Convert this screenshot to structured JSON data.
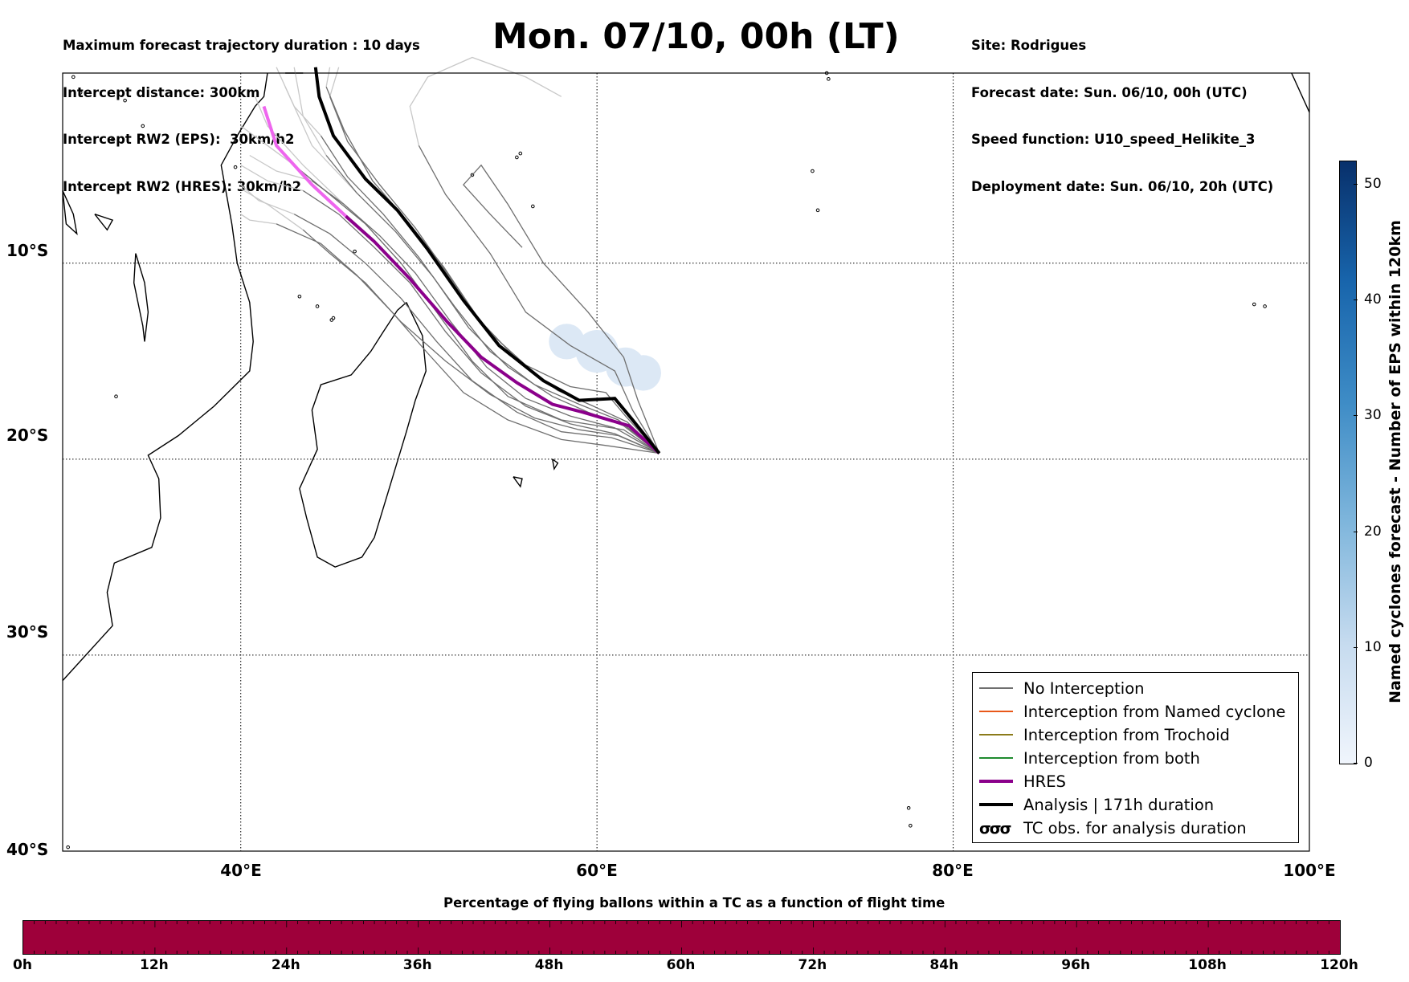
{
  "header": {
    "left_lines": [
      "Maximum forecast trajectory duration : 10 days",
      "Intercept distance: 300km",
      "Intercept RW2 (EPS):  30km/h2",
      "Intercept RW2 (HRES): 30km/h2"
    ],
    "title": "Mon. 07/10, 00h (LT)",
    "right_lines": [
      "Site: Rodrigues",
      "Forecast date: Sun. 06/10, 00h (UTC)",
      "Speed function: U10_speed_Helikite_3",
      "Deployment date: Sun. 06/10, 20h (UTC)"
    ]
  },
  "map": {
    "lat_labels": [
      "10°S",
      "20°S",
      "30°S",
      "40°S"
    ],
    "lon_labels": [
      "40°E",
      "60°E",
      "80°E",
      "100°E"
    ],
    "extent": {
      "lon": [
        30,
        100
      ],
      "lat_top": -0.3,
      "lat_bottom": -40
    },
    "colors": {
      "no_interception": "#6f6f6f",
      "faded_trajectory": "#c8c8c8",
      "hres": "#8b008b",
      "hres_faded": "#ee66ee",
      "analysis": "#000000",
      "cyclone_area": "#dce8f5"
    },
    "launch_site": {
      "lon": 63.5,
      "lat": -19.7
    },
    "hres_track": [
      [
        63.5,
        -19.7
      ],
      [
        61.8,
        -18.3
      ],
      [
        59.2,
        -17.6
      ],
      [
        57.5,
        -17.2
      ],
      [
        55.5,
        -16.1
      ],
      [
        53.5,
        -14.8
      ],
      [
        51.6,
        -13.0
      ],
      [
        49.5,
        -10.8
      ],
      [
        47.5,
        -8.9
      ],
      [
        45.9,
        -7.6
      ]
    ],
    "hres_track_faded": [
      [
        45.9,
        -7.6
      ],
      [
        44.0,
        -6.0
      ],
      [
        42.0,
        -4.0
      ],
      [
        41.3,
        -2.0
      ]
    ],
    "analysis_track": [
      [
        63.5,
        -19.7
      ],
      [
        62.0,
        -18.0
      ],
      [
        61.0,
        -16.9
      ],
      [
        59.0,
        -17.0
      ],
      [
        57.0,
        -16.0
      ],
      [
        54.5,
        -14.2
      ],
      [
        52.5,
        -11.9
      ],
      [
        50.5,
        -9.3
      ],
      [
        48.8,
        -7.3
      ],
      [
        47.0,
        -5.7
      ],
      [
        45.2,
        -3.5
      ],
      [
        44.4,
        -1.5
      ],
      [
        44.2,
        0.0
      ]
    ],
    "ensemble_tracks": [
      [
        [
          63.5,
          -19.7
        ],
        [
          61.5,
          -18.5
        ],
        [
          58.0,
          -18.0
        ],
        [
          55.0,
          -16.8
        ],
        [
          53.0,
          -15.0
        ],
        [
          51.0,
          -12.5
        ],
        [
          49.0,
          -10.0
        ],
        [
          47.0,
          -8.0
        ],
        [
          45.0,
          -6.5
        ],
        [
          43.0,
          -5.0
        ]
      ],
      [
        [
          63.5,
          -19.7
        ],
        [
          61.0,
          -18.7
        ],
        [
          58.5,
          -18.2
        ],
        [
          56.0,
          -17.3
        ],
        [
          53.5,
          -15.6
        ],
        [
          51.5,
          -13.5
        ],
        [
          49.5,
          -11.0
        ],
        [
          47.5,
          -9.2
        ],
        [
          45.5,
          -7.5
        ],
        [
          43.5,
          -6.3
        ]
      ],
      [
        [
          63.5,
          -19.7
        ],
        [
          61.2,
          -18.0
        ],
        [
          59.0,
          -17.2
        ],
        [
          56.5,
          -16.2
        ],
        [
          54.0,
          -14.5
        ],
        [
          52.0,
          -12.2
        ],
        [
          50.0,
          -9.7
        ],
        [
          48.0,
          -7.5
        ],
        [
          46.0,
          -5.6
        ],
        [
          44.5,
          -3.5
        ]
      ],
      [
        [
          63.5,
          -19.7
        ],
        [
          60.8,
          -18.9
        ],
        [
          58.0,
          -18.6
        ],
        [
          55.5,
          -17.6
        ],
        [
          53.0,
          -16.0
        ],
        [
          51.0,
          -14.0
        ],
        [
          49.0,
          -11.8
        ],
        [
          47.0,
          -10.0
        ],
        [
          45.0,
          -8.5
        ],
        [
          43.0,
          -7.5
        ]
      ],
      [
        [
          63.5,
          -19.7
        ],
        [
          61.5,
          -18.3
        ],
        [
          59.5,
          -17.6
        ],
        [
          57.5,
          -16.8
        ],
        [
          55.0,
          -15.3
        ],
        [
          52.8,
          -13.3
        ],
        [
          50.8,
          -10.7
        ],
        [
          48.7,
          -8.4
        ],
        [
          46.5,
          -6.4
        ],
        [
          44.8,
          -4.5
        ]
      ],
      [
        [
          63.5,
          -19.7
        ],
        [
          60.5,
          -19.3
        ],
        [
          58.0,
          -19.0
        ],
        [
          55.0,
          -18.0
        ],
        [
          52.5,
          -16.6
        ],
        [
          50.5,
          -14.6
        ],
        [
          48.5,
          -12.5
        ],
        [
          46.5,
          -10.6
        ],
        [
          44.5,
          -9.0
        ],
        [
          42.0,
          -8.0
        ]
      ],
      [
        [
          63.5,
          -19.7
        ],
        [
          61.6,
          -17.8
        ],
        [
          60.5,
          -16.6
        ],
        [
          58.5,
          -16.3
        ],
        [
          56.0,
          -15.2
        ],
        [
          53.8,
          -13.4
        ],
        [
          51.8,
          -10.8
        ],
        [
          49.8,
          -8.2
        ],
        [
          47.8,
          -6.0
        ],
        [
          46.0,
          -3.8
        ],
        [
          45.0,
          -1.5
        ]
      ],
      [
        [
          63.5,
          -19.7
        ],
        [
          61.0,
          -18.4
        ],
        [
          58.5,
          -17.8
        ],
        [
          56.0,
          -16.9
        ],
        [
          53.8,
          -15.3
        ],
        [
          51.8,
          -13.0
        ],
        [
          49.8,
          -10.5
        ],
        [
          47.8,
          -8.6
        ],
        [
          45.8,
          -7.0
        ],
        [
          44.0,
          -5.8
        ]
      ],
      [
        [
          63.5,
          -19.7
        ],
        [
          62.0,
          -17.5
        ],
        [
          61.0,
          -15.5
        ],
        [
          58.5,
          -14.2
        ],
        [
          56.0,
          -12.5
        ],
        [
          54.0,
          -9.5
        ],
        [
          51.5,
          -6.5
        ],
        [
          50.0,
          -4.0
        ]
      ],
      [
        [
          63.5,
          -19.7
        ],
        [
          62.3,
          -17.0
        ],
        [
          61.5,
          -14.8
        ],
        [
          59.5,
          -12.5
        ],
        [
          57.0,
          -10.0
        ],
        [
          55.0,
          -7.0
        ],
        [
          53.5,
          -5.0
        ],
        [
          52.5,
          -6.0
        ],
        [
          54.0,
          -7.5
        ],
        [
          55.8,
          -9.2
        ]
      ],
      [
        [
          63.5,
          -19.7
        ],
        [
          61.2,
          -18.8
        ],
        [
          59.0,
          -18.5
        ],
        [
          56.5,
          -17.9
        ],
        [
          54.0,
          -16.7
        ],
        [
          51.5,
          -15.0
        ],
        [
          49.0,
          -13.0
        ],
        [
          47.0,
          -11.0
        ],
        [
          45.0,
          -9.5
        ],
        [
          43.5,
          -8.3
        ]
      ],
      [
        [
          63.5,
          -19.7
        ],
        [
          61.7,
          -18.1
        ],
        [
          59.8,
          -17.3
        ],
        [
          57.8,
          -16.5
        ],
        [
          55.6,
          -15.0
        ],
        [
          53.4,
          -12.9
        ],
        [
          51.4,
          -10.2
        ],
        [
          49.4,
          -7.9
        ],
        [
          47.4,
          -5.8
        ],
        [
          45.8,
          -3.2
        ],
        [
          44.8,
          -1.0
        ]
      ]
    ],
    "faded_tracks": [
      [
        [
          43.0,
          -5.0
        ],
        [
          41.5,
          -4.0
        ],
        [
          40.0,
          -3.0
        ]
      ],
      [
        [
          43.5,
          -6.3
        ],
        [
          41.5,
          -5.8
        ],
        [
          40.0,
          -5.0
        ]
      ],
      [
        [
          44.5,
          -3.5
        ],
        [
          43.0,
          -2.0
        ],
        [
          42.0,
          0.0
        ]
      ],
      [
        [
          43.0,
          -7.5
        ],
        [
          41.0,
          -6.8
        ],
        [
          40.0,
          -6.0
        ]
      ],
      [
        [
          44.8,
          -4.5
        ],
        [
          43.5,
          -2.5
        ],
        [
          43.0,
          0.0
        ]
      ],
      [
        [
          42.0,
          -8.0
        ],
        [
          40.5,
          -7.8
        ],
        [
          40.0,
          -7.5
        ]
      ],
      [
        [
          45.0,
          -1.5
        ],
        [
          45.5,
          0.0
        ]
      ],
      [
        [
          44.0,
          -5.8
        ],
        [
          42.0,
          -5.3
        ],
        [
          40.5,
          -4.5
        ]
      ],
      [
        [
          50.0,
          -4.0
        ],
        [
          49.5,
          -2.0
        ],
        [
          50.5,
          -0.5
        ],
        [
          53.0,
          0.5
        ],
        [
          56.0,
          -0.5
        ],
        [
          58.0,
          -1.5
        ]
      ],
      [
        [
          43.5,
          -8.3
        ],
        [
          41.5,
          -7.0
        ],
        [
          40.0,
          -6.2
        ]
      ],
      [
        [
          44.8,
          -1.0
        ],
        [
          45.0,
          0.0
        ]
      ],
      [
        [
          45.8,
          -7.0
        ],
        [
          43.5,
          -5.0
        ],
        [
          41.5,
          -3.0
        ],
        [
          40.8,
          -1.5
        ]
      ],
      [
        [
          46.5,
          -6.4
        ],
        [
          44.0,
          -4.0
        ],
        [
          42.5,
          -1.0
        ]
      ]
    ],
    "cyclone_blobs": [
      {
        "lon": 58.3,
        "lat": -14.0,
        "r": 1.0
      },
      {
        "lon": 60.0,
        "lat": -14.5,
        "r": 1.2
      },
      {
        "lon": 61.6,
        "lat": -15.3,
        "r": 1.1
      },
      {
        "lon": 62.6,
        "lat": -15.6,
        "r": 1.0
      }
    ],
    "coastlines": [
      [
        [
          30.0,
          -31.3
        ],
        [
          31.5,
          -29.8
        ],
        [
          32.8,
          -28.5
        ],
        [
          32.5,
          -26.8
        ],
        [
          32.9,
          -25.3
        ],
        [
          35.0,
          -24.5
        ],
        [
          35.5,
          -23.0
        ],
        [
          35.4,
          -21.0
        ],
        [
          34.8,
          -19.8
        ],
        [
          36.5,
          -18.8
        ],
        [
          38.5,
          -17.3
        ],
        [
          40.5,
          -15.5
        ],
        [
          40.7,
          -14.0
        ],
        [
          40.5,
          -12.0
        ],
        [
          39.8,
          -10.0
        ],
        [
          39.5,
          -8.0
        ],
        [
          39.2,
          -6.5
        ],
        [
          38.9,
          -5.0
        ],
        [
          39.8,
          -3.5
        ],
        [
          40.8,
          -2.0
        ],
        [
          41.3,
          -1.5
        ],
        [
          41.5,
          -0.3
        ]
      ],
      [
        [
          49.3,
          -12.0
        ],
        [
          50.2,
          -13.7
        ],
        [
          50.4,
          -15.5
        ],
        [
          49.8,
          -17.0
        ],
        [
          49.3,
          -18.6
        ],
        [
          48.5,
          -21.0
        ],
        [
          47.5,
          -24.0
        ],
        [
          46.8,
          -25.0
        ],
        [
          45.3,
          -25.5
        ],
        [
          44.3,
          -25.0
        ],
        [
          43.7,
          -23.0
        ],
        [
          43.3,
          -21.5
        ],
        [
          44.3,
          -19.5
        ],
        [
          44.0,
          -17.5
        ],
        [
          44.5,
          -16.2
        ],
        [
          46.2,
          -15.7
        ],
        [
          47.3,
          -14.5
        ],
        [
          48.0,
          -13.5
        ],
        [
          48.8,
          -12.4
        ],
        [
          49.3,
          -12.0
        ]
      ],
      [
        [
          30.0,
          -6.3
        ],
        [
          30.6,
          -7.5
        ],
        [
          30.8,
          -8.5
        ],
        [
          30.2,
          -8.0
        ],
        [
          30.0,
          -6.3
        ]
      ],
      [
        [
          34.1,
          -9.5
        ],
        [
          34.6,
          -11.0
        ],
        [
          34.8,
          -12.5
        ],
        [
          34.6,
          -14.0
        ],
        [
          34.5,
          -13.2
        ],
        [
          34.0,
          -11.0
        ],
        [
          34.1,
          -9.5
        ]
      ],
      [
        [
          31.8,
          -7.5
        ],
        [
          32.8,
          -7.8
        ],
        [
          32.5,
          -8.3
        ],
        [
          31.8,
          -7.5
        ]
      ],
      [
        [
          42.5,
          -0.3
        ],
        [
          43.5,
          -0.3
        ]
      ],
      [
        [
          55.3,
          -20.9
        ],
        [
          55.8,
          -21.0
        ],
        [
          55.7,
          -21.4
        ],
        [
          55.3,
          -20.9
        ]
      ],
      [
        [
          57.5,
          -20.0
        ],
        [
          57.8,
          -20.2
        ],
        [
          57.6,
          -20.5
        ],
        [
          57.5,
          -20.0
        ]
      ],
      [
        [
          99.0,
          -0.3
        ],
        [
          100.0,
          -2.3
        ]
      ]
    ],
    "islands": [
      [
        43.3,
        -11.7
      ],
      [
        44.3,
        -12.2
      ],
      [
        45.2,
        -12.8
      ],
      [
        45.1,
        -12.9
      ],
      [
        55.5,
        -4.6
      ],
      [
        55.7,
        -4.4
      ],
      [
        56.4,
        -7.1
      ],
      [
        53.0,
        -5.5
      ],
      [
        46.4,
        -9.4
      ],
      [
        72.4,
        -7.3
      ],
      [
        72.1,
        -5.3
      ],
      [
        73.0,
        -0.6
      ],
      [
        72.9,
        -0.3
      ],
      [
        96.9,
        -12.1
      ],
      [
        97.5,
        -12.2
      ],
      [
        77.5,
        -37.8
      ],
      [
        77.6,
        -38.7
      ],
      [
        33.0,
        -16.8
      ],
      [
        30.6,
        -0.5
      ],
      [
        31.0,
        -1.3
      ],
      [
        33.5,
        -1.7
      ],
      [
        34.5,
        -3.0
      ],
      [
        32.8,
        -3.7
      ],
      [
        39.7,
        -5.1
      ],
      [
        30.3,
        -39.8
      ]
    ]
  },
  "legend": {
    "items": [
      {
        "label": "No Interception",
        "color": "#6f6f6f",
        "width": 1.3,
        "symbol": ""
      },
      {
        "label": "Interception from Named cyclone",
        "color": "#e8581a",
        "width": 1.3,
        "symbol": ""
      },
      {
        "label": "Interception from Trochoid",
        "color": "#8b7b1a",
        "width": 1.3,
        "symbol": ""
      },
      {
        "label": "Interception from both",
        "color": "#1e8b2e",
        "width": 1.3,
        "symbol": ""
      },
      {
        "label": "HRES",
        "color": "#8b008b",
        "width": 4,
        "symbol": ""
      },
      {
        "label": "Analysis | 171h duration",
        "color": "#000000",
        "width": 4,
        "symbol": ""
      },
      {
        "label": "TC obs. for analysis duration",
        "color": "",
        "width": 0,
        "symbol": "σσσ"
      }
    ]
  },
  "colorbar_right": {
    "label": "Named cyclones forecast - Number of EPS within 120km",
    "ticks": [
      "0",
      "10",
      "20",
      "30",
      "40",
      "50"
    ],
    "tick_values": [
      0,
      10,
      20,
      30,
      40,
      50
    ],
    "max": 52
  },
  "colorbar_bottom": {
    "title": "Percentage of flying ballons within a TC as a function of flight time",
    "color": "#9e003a",
    "tick_labels": [
      "0h",
      "12h",
      "24h",
      "36h",
      "48h",
      "60h",
      "72h",
      "84h",
      "96h",
      "108h",
      "120h"
    ]
  }
}
